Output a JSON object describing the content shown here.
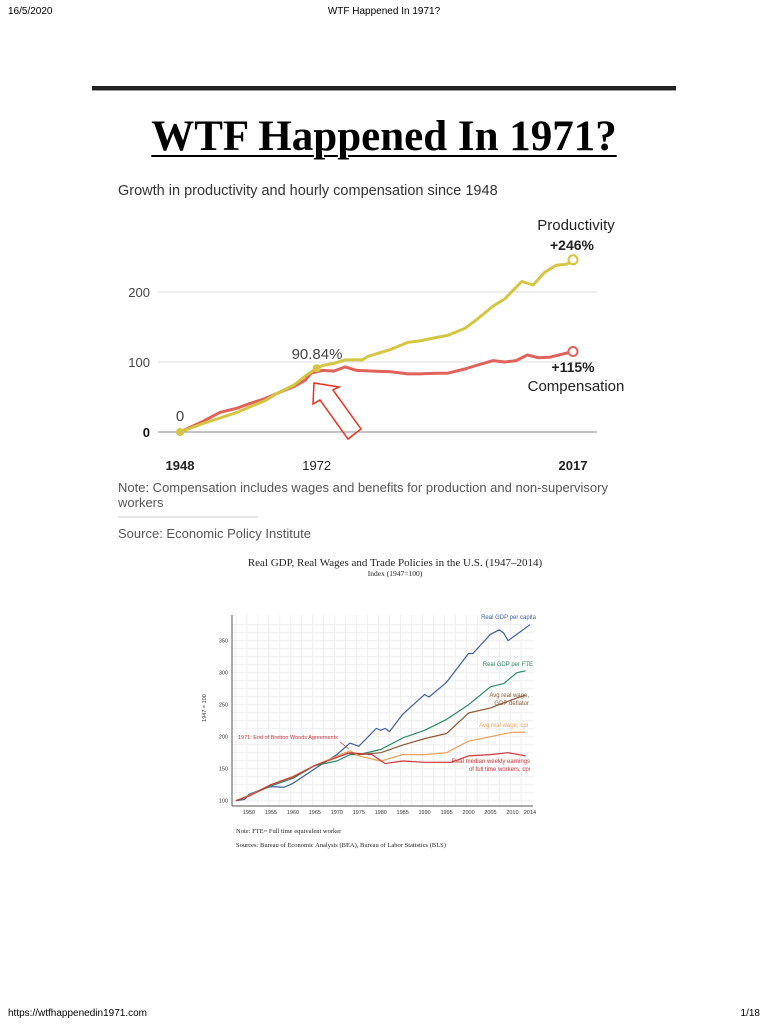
{
  "header": {
    "date": "16/5/2020",
    "title": "WTF Happened In 1971?"
  },
  "footer": {
    "url": "https://wtfhappenedin1971.com",
    "page": "1/18"
  },
  "article": {
    "title": "WTF Happened In 1971?"
  },
  "chart_data": [
    {
      "type": "line",
      "title": "Growth in productivity and hourly compensation since 1948",
      "x_ticks": [
        "1948",
        "1972",
        "2017"
      ],
      "y_ticks": [
        "0",
        "100",
        "200"
      ],
      "ylim": [
        0,
        260
      ],
      "xlim": [
        1948,
        2017
      ],
      "grid": true,
      "annotations": {
        "start": "0",
        "mid": "90.84%",
        "arrow_color": "#e8321e",
        "prod_pct": "+246%",
        "prod_label": "Productivity",
        "comp_pct": "+115%",
        "comp_label": "Compensation"
      },
      "note": "Note: Compensation includes wages and benefits for production and non-supervisory workers",
      "source": "Source: Economic Policy Institute",
      "series": [
        {
          "name": "Productivity",
          "color": "#d4c642",
          "x": [
            1948,
            1952,
            1955,
            1958,
            1960,
            1963,
            1965,
            1968,
            1970,
            1972,
            1973,
            1975,
            1977,
            1980,
            1981,
            1985,
            1988,
            1990,
            1993,
            1995,
            1998,
            2000,
            2003,
            2005,
            2008,
            2010,
            2012,
            2014,
            2016,
            2017
          ],
          "y": [
            0,
            12,
            20,
            28,
            35,
            45,
            55,
            67,
            80,
            91,
            95,
            98,
            103,
            103,
            108,
            118,
            128,
            130,
            135,
            138,
            148,
            160,
            180,
            190,
            215,
            210,
            228,
            238,
            240,
            246
          ]
        },
        {
          "name": "Compensation",
          "color": "#e0625a",
          "x": [
            1948,
            1952,
            1955,
            1958,
            1960,
            1963,
            1965,
            1968,
            1970,
            1971,
            1973,
            1975,
            1977,
            1979,
            1982,
            1985,
            1988,
            1990,
            1993,
            1995,
            1998,
            2000,
            2003,
            2005,
            2007,
            2009,
            2011,
            2013,
            2015,
            2017
          ],
          "y": [
            0,
            15,
            28,
            34,
            40,
            48,
            55,
            65,
            74,
            84,
            88,
            87,
            93,
            88,
            87,
            86,
            83,
            83,
            84,
            84,
            90,
            95,
            102,
            100,
            102,
            110,
            106,
            107,
            111,
            115
          ]
        }
      ]
    },
    {
      "type": "line",
      "title": "Real GDP, Real Wages and Trade Policies in the U.S. (1947–2014)",
      "subtitle": "Index (1947=100)",
      "ylabel": "1947 = 100",
      "x_ticks": [
        "1950",
        "1955",
        "1960",
        "1965",
        "1970",
        "1975",
        "1980",
        "1985",
        "1990",
        "1995",
        "2000",
        "2005",
        "2010",
        "2014"
      ],
      "y_ticks": [
        "100",
        "150",
        "200",
        "250",
        "300",
        "350"
      ],
      "xlim": [
        1946,
        2015
      ],
      "ylim": [
        95,
        380
      ],
      "grid": true,
      "annotation": "1971: End of Bretton Woods Agreements",
      "note": "Note: FTE= Full time equivalent worker",
      "source": "Sources: Bureau of Economic Analysis (BEA), Bureau of Labor Statistics (BLS)",
      "series": [
        {
          "name": "Real GDP per capita",
          "color": "#3d5e9e",
          "x": [
            1947,
            1949,
            1950,
            1953,
            1955,
            1958,
            1960,
            1965,
            1970,
            1973,
            1975,
            1979,
            1980,
            1981,
            1982,
            1985,
            1990,
            1991,
            1995,
            2000,
            2001,
            2005,
            2007,
            2008,
            2009,
            2014
          ],
          "y": [
            100,
            102,
            110,
            118,
            122,
            121,
            127,
            150,
            172,
            190,
            185,
            213,
            210,
            213,
            208,
            235,
            266,
            262,
            285,
            330,
            330,
            360,
            367,
            362,
            350,
            375
          ]
        },
        {
          "name": "Real GDP per FTE",
          "color": "#2a8a64",
          "x": [
            1947,
            1950,
            1955,
            1960,
            1965,
            1970,
            1973,
            1975,
            1980,
            1985,
            1990,
            1995,
            2000,
            2005,
            2008,
            2011,
            2013
          ],
          "y": [
            100,
            108,
            123,
            135,
            155,
            162,
            172,
            172,
            180,
            198,
            210,
            227,
            250,
            278,
            283,
            300,
            303
          ]
        },
        {
          "name": "Avg real wage, GDP deflator",
          "color": "#8a5a36",
          "x": [
            1947,
            1950,
            1955,
            1960,
            1965,
            1972,
            1975,
            1980,
            1985,
            1990,
            1995,
            2000,
            2005,
            2010,
            2013
          ],
          "y": [
            100,
            108,
            125,
            138,
            155,
            175,
            172,
            175,
            187,
            197,
            205,
            237,
            245,
            258,
            265
          ]
        },
        {
          "name": "Avg real wage, cpi",
          "color": "#eaa05c",
          "x": [
            1947,
            1950,
            1955,
            1960,
            1965,
            1973,
            1975,
            1980,
            1985,
            1990,
            1995,
            2000,
            2005,
            2010,
            2013
          ],
          "y": [
            100,
            108,
            125,
            138,
            155,
            178,
            170,
            162,
            172,
            172,
            175,
            193,
            200,
            207,
            207
          ]
        },
        {
          "name": "Real median weekly earnings of full time workers, cpi",
          "color": "#c8383c",
          "x": [
            1947,
            1950,
            1955,
            1960,
            1965,
            1973,
            1978,
            1981,
            1985,
            1990,
            1996,
            2000,
            2005,
            2009,
            2013
          ],
          "y": [
            100,
            107,
            125,
            137,
            155,
            175,
            172,
            158,
            162,
            160,
            160,
            170,
            172,
            175,
            170
          ]
        }
      ]
    }
  ]
}
